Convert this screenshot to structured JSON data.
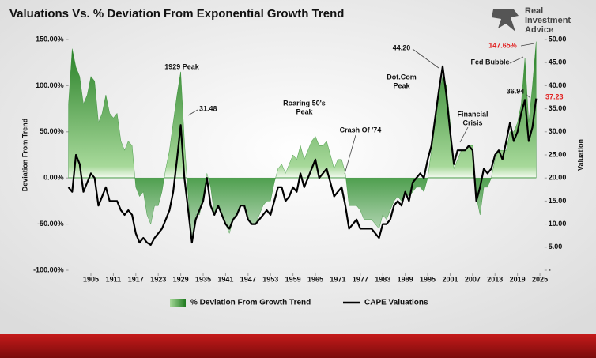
{
  "chart_data": {
    "type": "area-line",
    "title": "Valuations Vs. % Deviation From Exponential Growth Trend",
    "y_label": "Deviation From Trend",
    "y2_label": "Valuation",
    "x": [
      1899,
      1900,
      1901,
      1902,
      1903,
      1904,
      1905,
      1906,
      1907,
      1908,
      1909,
      1910,
      1911,
      1912,
      1913,
      1914,
      1915,
      1916,
      1917,
      1918,
      1919,
      1920,
      1921,
      1922,
      1923,
      1924,
      1925,
      1926,
      1927,
      1928,
      1929,
      1930,
      1931,
      1932,
      1933,
      1934,
      1935,
      1936,
      1937,
      1938,
      1939,
      1940,
      1941,
      1942,
      1943,
      1944,
      1945,
      1946,
      1947,
      1948,
      1949,
      1950,
      1951,
      1952,
      1953,
      1954,
      1955,
      1956,
      1957,
      1958,
      1959,
      1960,
      1961,
      1962,
      1963,
      1964,
      1965,
      1966,
      1967,
      1968,
      1969,
      1970,
      1971,
      1972,
      1973,
      1974,
      1975,
      1976,
      1977,
      1978,
      1979,
      1980,
      1981,
      1982,
      1983,
      1984,
      1985,
      1986,
      1987,
      1988,
      1989,
      1990,
      1991,
      1992,
      1993,
      1994,
      1995,
      1996,
      1997,
      1998,
      1999,
      2000,
      2001,
      2002,
      2003,
      2004,
      2005,
      2006,
      2007,
      2008,
      2009,
      2010,
      2011,
      2012,
      2013,
      2014,
      2015,
      2016,
      2017,
      2018,
      2019,
      2020,
      2021,
      2022,
      2023,
      2024
    ],
    "series": [
      {
        "name": "% Deviation From Growth Trend",
        "color": "#2e8b2e",
        "values": [
          80,
          140,
          120,
          110,
          80,
          90,
          110,
          105,
          60,
          70,
          90,
          70,
          65,
          70,
          40,
          30,
          40,
          35,
          -10,
          -20,
          -15,
          -40,
          -50,
          -30,
          -30,
          -15,
          10,
          30,
          60,
          90,
          115,
          40,
          -20,
          -70,
          -40,
          -40,
          -20,
          5,
          -10,
          -40,
          -30,
          -40,
          -50,
          -60,
          -45,
          -40,
          -30,
          -30,
          -45,
          -50,
          -50,
          -40,
          -30,
          -25,
          -25,
          -5,
          10,
          15,
          5,
          15,
          25,
          20,
          35,
          20,
          30,
          40,
          45,
          35,
          35,
          40,
          25,
          10,
          20,
          20,
          5,
          -30,
          -30,
          -30,
          -35,
          -45,
          -45,
          -45,
          -50,
          -55,
          -40,
          -45,
          -35,
          -25,
          -20,
          -25,
          -15,
          -20,
          -15,
          -10,
          -10,
          -15,
          0,
          30,
          60,
          90,
          110,
          100,
          60,
          10,
          20,
          30,
          30,
          35,
          35,
          -20,
          -40,
          -10,
          -10,
          0,
          20,
          30,
          30,
          30,
          50,
          50,
          60,
          80,
          130,
          60,
          100,
          147.65
        ]
      },
      {
        "name": "CAPE Valuations",
        "color": "#000000",
        "axis": "y2",
        "values": [
          18,
          17,
          25,
          23,
          17,
          19,
          21,
          20,
          14,
          16,
          18,
          15,
          15,
          15,
          13,
          12,
          13,
          12,
          8,
          6,
          7,
          6,
          5.5,
          7,
          8,
          9,
          11,
          13,
          17,
          24,
          31.48,
          20,
          13,
          6,
          11,
          13,
          15,
          20,
          14,
          12,
          14,
          12,
          10,
          9,
          11,
          12,
          14,
          14,
          11,
          10,
          10,
          11,
          12,
          13,
          12,
          15,
          18,
          18,
          15,
          16,
          18,
          17,
          21,
          18,
          20,
          22,
          24,
          20,
          21,
          22,
          19,
          16,
          17,
          18,
          14,
          9,
          10,
          11,
          9,
          9,
          9,
          9,
          8,
          7,
          10,
          10,
          11,
          14,
          15,
          14,
          17,
          15,
          19,
          20,
          21,
          20,
          24,
          27,
          33,
          39,
          44.2,
          38,
          30,
          23,
          26,
          26,
          26,
          27,
          26,
          15,
          18,
          22,
          21,
          22,
          25,
          26,
          24,
          28,
          32,
          28,
          30,
          34,
          36.94,
          28,
          31,
          37.23
        ]
      }
    ],
    "xlim": [
      1899,
      2026
    ],
    "xticks": [
      1905,
      1911,
      1917,
      1923,
      1929,
      1935,
      1941,
      1947,
      1953,
      1959,
      1965,
      1971,
      1977,
      1983,
      1989,
      1995,
      2001,
      2007,
      2013,
      2019,
      2025
    ],
    "ylim": [
      -100,
      150
    ],
    "yticks": [
      {
        "value": -100,
        "label": "-100.00%"
      },
      {
        "value": -50,
        "label": "-50.00%"
      },
      {
        "value": 0,
        "label": "0.00%"
      },
      {
        "value": 50,
        "label": "50.00%"
      },
      {
        "value": 100,
        "label": "100.00%"
      },
      {
        "value": 150,
        "label": "150.00%"
      }
    ],
    "y2lim": [
      0,
      50
    ],
    "y2ticks": [
      {
        "value": 0,
        "label": "-"
      },
      {
        "value": 5,
        "label": "5.00"
      },
      {
        "value": 10,
        "label": "10.00"
      },
      {
        "value": 15,
        "label": "15.00"
      },
      {
        "value": 20,
        "label": "20.00"
      },
      {
        "value": 25,
        "label": "25.00"
      },
      {
        "value": 30,
        "label": "30.00"
      },
      {
        "value": 35,
        "label": "35.00"
      },
      {
        "value": 40,
        "label": "40.00"
      },
      {
        "value": 45,
        "label": "45.00"
      },
      {
        "value": 50,
        "label": "50.00"
      }
    ],
    "annotations": [
      {
        "lines": [
          "1929 Peak"
        ],
        "color": "#111111"
      },
      {
        "lines": [
          "31.48"
        ],
        "color": "#111111"
      },
      {
        "lines": [
          "Roaring 50's",
          "Peak"
        ],
        "color": "#111111"
      },
      {
        "lines": [
          "Crash Of '74"
        ],
        "color": "#111111"
      },
      {
        "lines": [
          "44.20"
        ],
        "color": "#111111"
      },
      {
        "lines": [
          "Dot.Com",
          "Peak"
        ],
        "color": "#111111"
      },
      {
        "lines": [
          "Financial",
          "Crisis"
        ],
        "color": "#111111"
      },
      {
        "lines": [
          "Fed Bubble"
        ],
        "color": "#111111"
      },
      {
        "lines": [
          "147.65%"
        ],
        "color": "#e02020"
      },
      {
        "lines": [
          "36.94"
        ],
        "color": "#111111"
      },
      {
        "lines": [
          "37.23"
        ],
        "color": "#e02020"
      }
    ]
  },
  "logo": [
    "Real",
    "Investment",
    "Advice"
  ]
}
